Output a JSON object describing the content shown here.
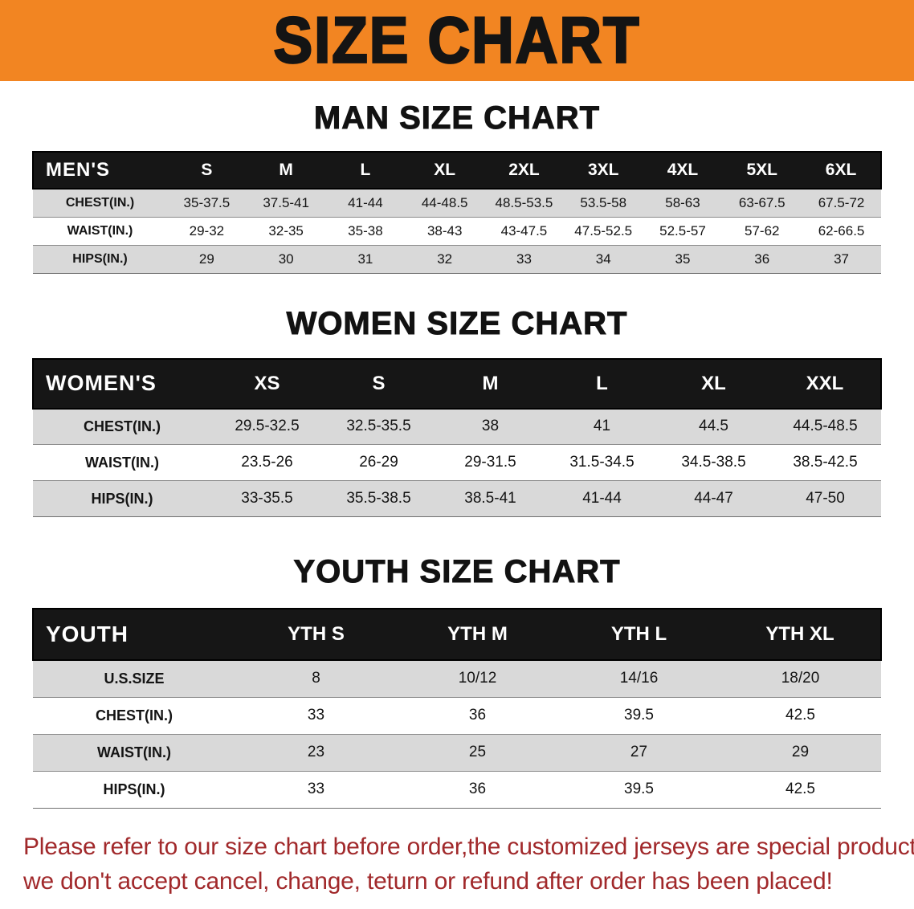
{
  "colors": {
    "banner-bg": "#f28522",
    "header-bg": "#161616",
    "stripe": "#d9d9d9",
    "note-red": "#a1292b"
  },
  "banner": {
    "title": "SIZE CHART"
  },
  "sections": [
    {
      "heading": "MAN SIZE CHART",
      "table": {
        "header": [
          "MEN'S",
          "S",
          "M",
          "L",
          "XL",
          "2XL",
          "3XL",
          "4XL",
          "5XL",
          "6XL"
        ],
        "rows": [
          [
            "CHEST(IN.)",
            "35-37.5",
            "37.5-41",
            "41-44",
            "44-48.5",
            "48.5-53.5",
            "53.5-58",
            "58-63",
            "63-67.5",
            "67.5-72"
          ],
          [
            "WAIST(IN.)",
            "29-32",
            "32-35",
            "35-38",
            "38-43",
            "43-47.5",
            "47.5-52.5",
            "52.5-57",
            "57-62",
            "62-66.5"
          ],
          [
            "HIPS(IN.)",
            "29",
            "30",
            "31",
            "32",
            "33",
            "34",
            "35",
            "36",
            "37"
          ]
        ]
      }
    },
    {
      "heading": "WOMEN SIZE CHART",
      "table": {
        "header": [
          "WOMEN'S",
          "XS",
          "S",
          "M",
          "L",
          "XL",
          "XXL"
        ],
        "rows": [
          [
            "CHEST(IN.)",
            "29.5-32.5",
            "32.5-35.5",
            "38",
            "41",
            "44.5",
            "44.5-48.5"
          ],
          [
            "WAIST(IN.)",
            "23.5-26",
            "26-29",
            "29-31.5",
            "31.5-34.5",
            "34.5-38.5",
            "38.5-42.5"
          ],
          [
            "HIPS(IN.)",
            "33-35.5",
            "35.5-38.5",
            "38.5-41",
            "41-44",
            "44-47",
            "47-50"
          ]
        ]
      }
    },
    {
      "heading": "YOUTH SIZE CHART",
      "table": {
        "header": [
          "YOUTH",
          "YTH S",
          "YTH M",
          "YTH L",
          "YTH XL"
        ],
        "rows": [
          [
            "U.S.SIZE",
            "8",
            "10/12",
            "14/16",
            "18/20"
          ],
          [
            "CHEST(IN.)",
            "33",
            "36",
            "39.5",
            "42.5"
          ],
          [
            "WAIST(IN.)",
            "23",
            "25",
            "27",
            "29"
          ],
          [
            "HIPS(IN.)",
            "33",
            "36",
            "39.5",
            "42.5"
          ]
        ]
      }
    }
  ],
  "footer_note": {
    "line1": "Please refer to our size chart before order,the customized jerseys are special products,",
    "line2": "we don't accept cancel, change, teturn or refund after order has been placed!"
  }
}
